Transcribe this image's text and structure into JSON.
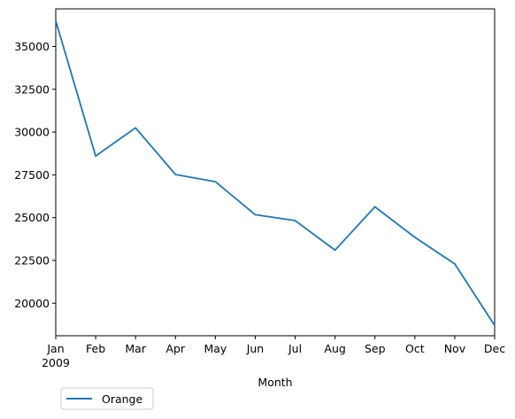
{
  "chart_data": {
    "type": "line",
    "title": "",
    "xlabel": "Month",
    "ylabel": "",
    "x": [
      "Jan",
      "Feb",
      "Mar",
      "Apr",
      "May",
      "Jun",
      "Jul",
      "Aug",
      "Sep",
      "Oct",
      "Nov",
      "Dec"
    ],
    "x_year_label": "2009",
    "series": [
      {
        "name": "Orange",
        "color": "#1f77b4",
        "values": [
          36500,
          28600,
          30250,
          27520,
          27100,
          25170,
          24830,
          23100,
          25630,
          23850,
          22300,
          18700
        ]
      }
    ],
    "ylim": [
      18100,
      37200
    ],
    "yticks": [
      20000,
      22500,
      25000,
      27500,
      30000,
      32500,
      35000
    ],
    "ytick_labels": [
      "20000",
      "22500",
      "25000",
      "27500",
      "30000",
      "32500",
      "35000"
    ],
    "grid": false,
    "legend_position": "lower-left-below"
  }
}
